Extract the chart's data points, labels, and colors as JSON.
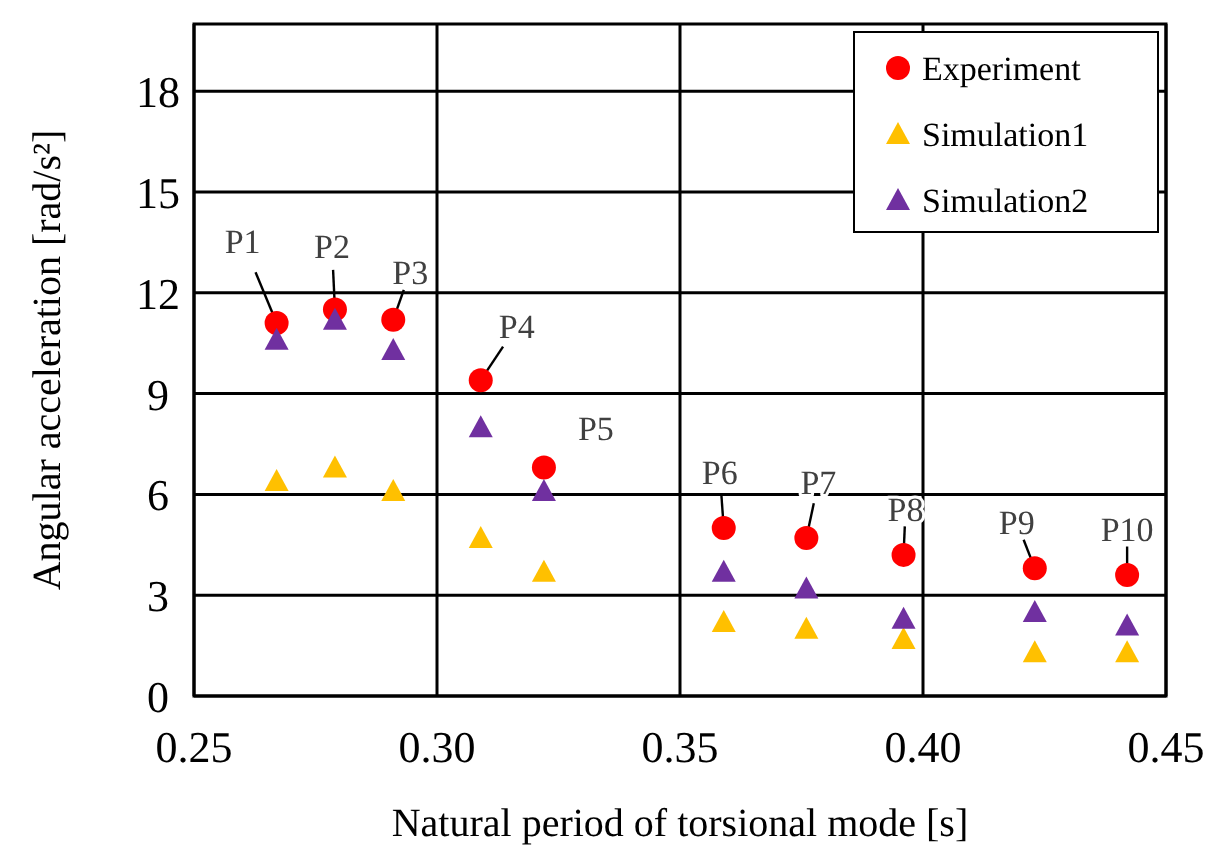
{
  "chart_data": {
    "type": "scatter",
    "xlabel": "Natural period of torsional mode [s]",
    "ylabel": "Angular acceleration [rad/s²]",
    "x": [
      0.267,
      0.279,
      0.291,
      0.309,
      0.322,
      0.359,
      0.376,
      0.396,
      0.423,
      0.442
    ],
    "series": [
      {
        "name": "Experiment",
        "color": "#ff0000",
        "marker": "circle",
        "values": [
          11.1,
          11.5,
          11.2,
          9.4,
          6.8,
          5.0,
          4.7,
          4.2,
          3.8,
          3.6
        ]
      },
      {
        "name": "Simulation1",
        "color": "#ffc000",
        "marker": "triangle",
        "values": [
          6.4,
          6.8,
          6.1,
          4.7,
          3.7,
          2.2,
          2.0,
          1.7,
          1.3,
          1.3
        ]
      },
      {
        "name": "Simulation2",
        "color": "#7030a0",
        "marker": "triangle",
        "values": [
          10.6,
          11.2,
          10.3,
          8.0,
          6.1,
          3.7,
          3.2,
          2.3,
          2.5,
          2.1
        ]
      }
    ],
    "xlim": [
      0.25,
      0.45
    ],
    "xticks": [
      {
        "value": 0.25,
        "label": "0.25"
      },
      {
        "value": 0.3,
        "label": "0.30"
      },
      {
        "value": 0.35,
        "label": "0.35"
      },
      {
        "value": 0.4,
        "label": "0.40"
      },
      {
        "value": 0.45,
        "label": "0.45"
      }
    ],
    "ylim": [
      0,
      20
    ],
    "yticks": [
      0,
      3,
      6,
      9,
      12,
      15,
      18
    ],
    "grid": true,
    "legend": "top right",
    "annotations": [
      {
        "text": "P1",
        "x": 0.267,
        "y": 11.1
      },
      {
        "text": "P2",
        "x": 0.279,
        "y": 11.5
      },
      {
        "text": "P3",
        "x": 0.291,
        "y": 11.2
      },
      {
        "text": "P4",
        "x": 0.309,
        "y": 9.4
      },
      {
        "text": "P5",
        "x": 0.322,
        "y": 6.8
      },
      {
        "text": "P6",
        "x": 0.359,
        "y": 5.0
      },
      {
        "text": "P7",
        "x": 0.376,
        "y": 4.7
      },
      {
        "text": "P8",
        "x": 0.396,
        "y": 4.2
      },
      {
        "text": "P9",
        "x": 0.423,
        "y": 3.8
      },
      {
        "text": "P10",
        "x": 0.442,
        "y": 3.6
      }
    ]
  }
}
